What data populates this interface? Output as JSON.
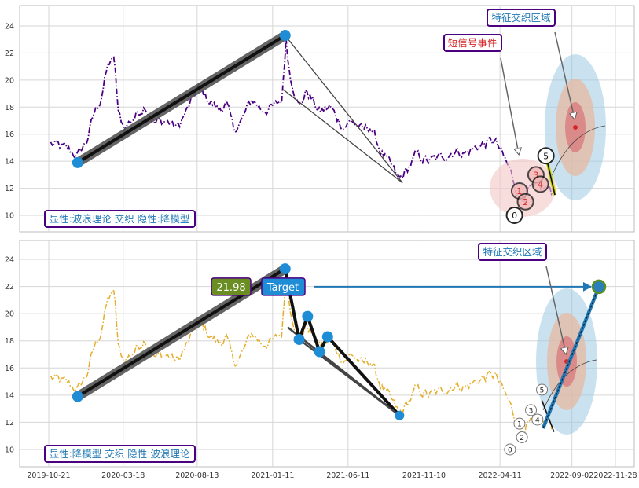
{
  "chart_data": [
    {
      "type": "line",
      "panel": "top",
      "ylim": [
        9.0,
        25.5
      ],
      "yticks": [
        10,
        12,
        14,
        16,
        18,
        20,
        22,
        24
      ],
      "grid": true,
      "series_color": "#4b0082",
      "label_box": "显性:波浪理论 交织 隐性:降模型",
      "callouts": [
        {
          "text": "特征交织区域",
          "color": "#1f77b4"
        },
        {
          "text": "短信号事件",
          "color": "#d62728"
        }
      ],
      "trend_points": [
        {
          "x": "2019-12-18",
          "y": 13.9
        },
        {
          "x": "2021-02-05",
          "y": 23.3
        }
      ],
      "wave_counts": [
        {
          "label": "0",
          "x": "2022-05-10",
          "y": 10.0
        },
        {
          "label": "1",
          "x": "2022-05-20",
          "y": 11.8
        },
        {
          "label": "2",
          "x": "2022-06-01",
          "y": 11.0
        },
        {
          "label": "3",
          "x": "2022-06-22",
          "y": 13.0
        },
        {
          "label": "4",
          "x": "2022-07-01",
          "y": 12.3
        },
        {
          "label": "5",
          "x": "2022-07-12",
          "y": 14.4
        }
      ]
    },
    {
      "type": "line",
      "panel": "bottom",
      "ylim": [
        9.0,
        25.5
      ],
      "yticks": [
        10,
        12,
        14,
        16,
        18,
        20,
        22,
        24
      ],
      "grid": true,
      "series_color": "#e5ae2c",
      "label_box": "显性:降模型 交织 隐性:波浪理论",
      "callouts": [
        {
          "text": "特征交织区域",
          "color": "#1f77b4"
        }
      ],
      "price_badge": "21.98",
      "target_badge": "Target",
      "target_y": 21.98,
      "trend_points": [
        {
          "x": "2019-12-18",
          "y": 13.9
        },
        {
          "x": "2021-02-05",
          "y": 23.3
        }
      ],
      "zigzag_points": [
        {
          "x": "2021-03-05",
          "y": 18.1
        },
        {
          "x": "2021-03-22",
          "y": 19.8
        },
        {
          "x": "2021-04-15",
          "y": 17.2
        },
        {
          "x": "2021-05-01",
          "y": 18.3
        },
        {
          "x": "2021-09-22",
          "y": 12.5
        }
      ],
      "wave_counts": [
        {
          "label": "0",
          "x": "2022-05-01",
          "y": 10.0
        },
        {
          "label": "1",
          "x": "2022-05-20",
          "y": 11.9
        },
        {
          "label": "2",
          "x": "2022-05-25",
          "y": 10.9
        },
        {
          "label": "3",
          "x": "2022-06-12",
          "y": 12.9
        },
        {
          "label": "4",
          "x": "2022-06-25",
          "y": 12.2
        },
        {
          "label": "5",
          "x": "2022-07-04",
          "y": 14.4
        }
      ],
      "xticks": [
        "2019-10-21",
        "2020-03-18",
        "2020-08-13",
        "2021-01-11",
        "2021-06-11",
        "2021-11-10",
        "2022-04-11",
        "2022-09-02",
        "2022-11-28"
      ]
    }
  ],
  "colors": {
    "accent_blue": "#1f8dd6",
    "label_border": "#4b0082",
    "red": "#d62728",
    "badge_green": "#6b8e23"
  }
}
